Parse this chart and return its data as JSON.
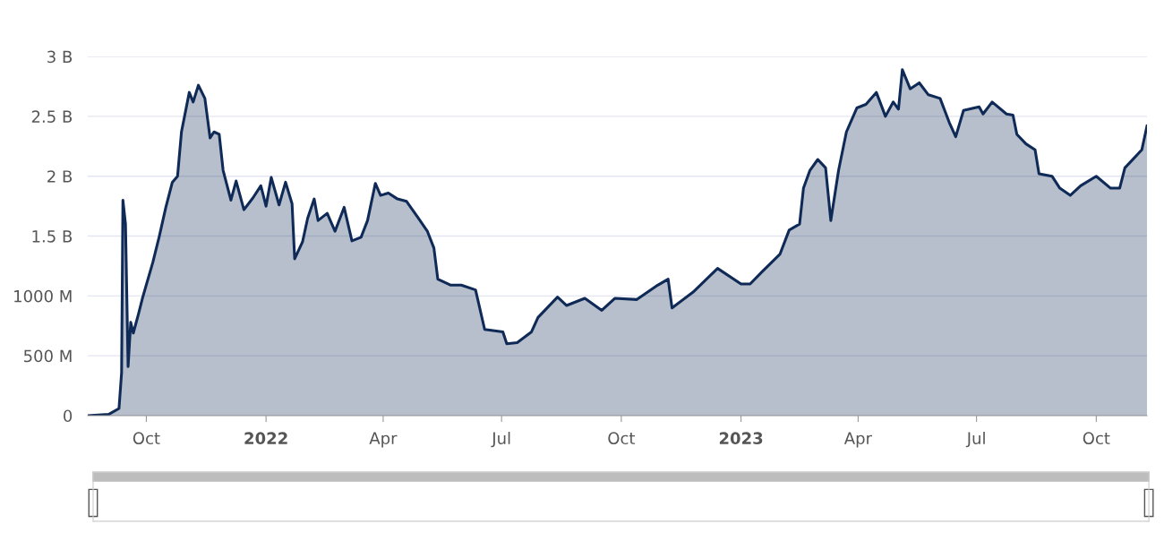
{
  "chart_data": {
    "type": "area",
    "x": [
      "2021-08-17",
      "2021-09-02",
      "2021-09-10",
      "2021-09-12",
      "2021-09-13",
      "2021-09-15",
      "2021-09-17",
      "2021-09-19",
      "2021-09-21",
      "2021-09-25",
      "2021-09-28",
      "2021-10-06",
      "2021-10-11",
      "2021-10-16",
      "2021-10-21",
      "2021-10-25",
      "2021-10-28",
      "2021-11-03",
      "2021-11-06",
      "2021-11-10",
      "2021-11-15",
      "2021-11-19",
      "2021-11-22",
      "2021-11-26",
      "2021-11-29",
      "2021-12-05",
      "2021-12-09",
      "2021-12-15",
      "2021-12-22",
      "2021-12-28",
      "2022-01-01",
      "2022-01-05",
      "2022-01-11",
      "2022-01-16",
      "2022-01-21",
      "2022-01-23",
      "2022-01-29",
      "2022-02-02",
      "2022-02-07",
      "2022-02-10",
      "2022-02-17",
      "2022-02-23",
      "2022-03-02",
      "2022-03-08",
      "2022-03-15",
      "2022-03-20",
      "2022-03-26",
      "2022-03-30",
      "2022-04-05",
      "2022-04-12",
      "2022-04-19",
      "2022-04-28",
      "2022-05-05",
      "2022-05-10",
      "2022-05-13",
      "2022-05-23",
      "2022-05-31",
      "2022-06-11",
      "2022-06-18",
      "2022-07-02",
      "2022-07-05",
      "2022-07-13",
      "2022-07-24",
      "2022-07-29",
      "2022-08-13",
      "2022-08-20",
      "2022-09-03",
      "2022-09-16",
      "2022-09-26",
      "2022-10-13",
      "2022-10-29",
      "2022-11-06",
      "2022-11-09",
      "2022-11-25",
      "2022-12-14",
      "2023-01-01",
      "2023-01-08",
      "2023-01-17",
      "2023-01-31",
      "2023-02-07",
      "2023-02-15",
      "2023-02-18",
      "2023-02-23",
      "2023-03-01",
      "2023-03-07",
      "2023-03-11",
      "2023-03-17",
      "2023-03-23",
      "2023-03-31",
      "2023-04-07",
      "2023-04-15",
      "2023-04-22",
      "2023-04-28",
      "2023-05-02",
      "2023-05-05",
      "2023-05-11",
      "2023-05-18",
      "2023-05-25",
      "2023-06-03",
      "2023-06-10",
      "2023-06-15",
      "2023-06-21",
      "2023-07-03",
      "2023-07-06",
      "2023-07-13",
      "2023-07-24",
      "2023-07-29",
      "2023-08-01",
      "2023-08-08",
      "2023-08-15",
      "2023-08-18",
      "2023-08-28",
      "2023-09-03",
      "2023-09-11",
      "2023-09-19",
      "2023-10-01",
      "2023-10-12",
      "2023-10-19",
      "2023-10-23",
      "2023-11-05",
      "2023-11-09"
    ],
    "series": [
      {
        "color": "#0f2a57",
        "values": [
          0,
          10000000,
          60000000,
          360000000,
          1800000000,
          1600000000,
          410000000,
          780000000,
          690000000,
          850000000,
          980000000,
          1280000000,
          1500000000,
          1740000000,
          1950000000,
          2000000000,
          2370000000,
          2700000000,
          2620000000,
          2760000000,
          2650000000,
          2320000000,
          2370000000,
          2350000000,
          2050000000,
          1800000000,
          1960000000,
          1720000000,
          1820000000,
          1920000000,
          1750000000,
          1990000000,
          1760000000,
          1950000000,
          1770000000,
          1310000000,
          1450000000,
          1650000000,
          1810000000,
          1630000000,
          1690000000,
          1540000000,
          1740000000,
          1460000000,
          1490000000,
          1630000000,
          1940000000,
          1840000000,
          1860000000,
          1810000000,
          1790000000,
          1650000000,
          1540000000,
          1400000000,
          1140000000,
          1090000000,
          1090000000,
          1050000000,
          720000000,
          700000000,
          600000000,
          610000000,
          700000000,
          820000000,
          990000000,
          920000000,
          980000000,
          880000000,
          980000000,
          970000000,
          1090000000,
          1140000000,
          900000000,
          1030000000,
          1230000000,
          1100000000,
          1100000000,
          1200000000,
          1350000000,
          1550000000,
          1600000000,
          1900000000,
          2050000000,
          2140000000,
          2070000000,
          1630000000,
          2050000000,
          2370000000,
          2570000000,
          2600000000,
          2700000000,
          2500000000,
          2620000000,
          2560000000,
          2890000000,
          2730000000,
          2780000000,
          2680000000,
          2650000000,
          2450000000,
          2330000000,
          2550000000,
          2580000000,
          2520000000,
          2620000000,
          2520000000,
          2510000000,
          2350000000,
          2270000000,
          2220000000,
          2020000000,
          2000000000,
          1900000000,
          1840000000,
          1920000000,
          2000000000,
          1900000000,
          1900000000,
          2070000000,
          2220000000,
          2420000000
        ]
      }
    ],
    "xlim": [
      "2021-08-17",
      "2023-11-09"
    ],
    "xticks": [
      {
        "value": "2021-10-01",
        "label": "Oct"
      },
      {
        "value": "2022-01-01",
        "label": "2022"
      },
      {
        "value": "2022-04-01",
        "label": "Apr"
      },
      {
        "value": "2022-07-01",
        "label": "Jul"
      },
      {
        "value": "2022-10-01",
        "label": "Oct"
      },
      {
        "value": "2023-01-01",
        "label": "2023"
      },
      {
        "value": "2023-04-01",
        "label": "Apr"
      },
      {
        "value": "2023-07-01",
        "label": "Jul"
      },
      {
        "value": "2023-10-01",
        "label": "Oct"
      }
    ],
    "ylim": [
      0,
      3000000000
    ],
    "yticks": [
      {
        "value": 0,
        "label": "0"
      },
      {
        "value": 500000000,
        "label": "500 M"
      },
      {
        "value": 1000000000,
        "label": "1000 M"
      },
      {
        "value": 1500000000,
        "label": "1.5 B"
      },
      {
        "value": 2000000000,
        "label": "2 B"
      },
      {
        "value": 2500000000,
        "label": "2.5 B"
      },
      {
        "value": 3000000000,
        "label": "3 B"
      }
    ],
    "grid": "y"
  }
}
